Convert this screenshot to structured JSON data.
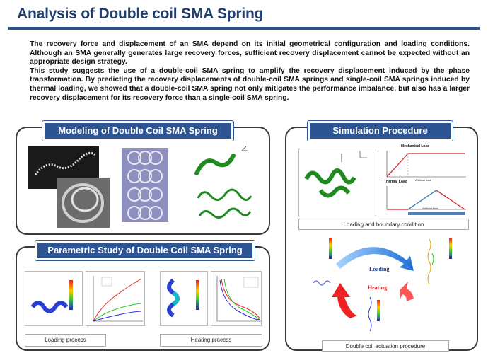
{
  "title": "Analysis of Double coil SMA Spring",
  "intro": {
    "p1": "The recovery force and displacement of an SMA depend on its initial geometrical configuration and loading conditions. Although an SMA generally generates large recovery forces, sufficient recovery displacement cannot be expected without an appropriate design strategy.",
    "p2": "This study suggests the use of a double-coil SMA spring to amplify the recovery displacement induced by the phase transformation. By predicting the recovery displacements of double-coil SMA springs and single-coil SMA springs induced by thermal loading, we showed that a double-coil SMA spring not only mitigates the performance imbalance, but also has a larger recovery displacement for its recovery force than a single-coil SMA spring."
  },
  "panels": {
    "modeling": {
      "title": "Modeling of Double Coil SMA Spring"
    },
    "parametric": {
      "title": "Parametric Study of Double Coil SMA Spring",
      "caption_loading": "Loading process",
      "caption_heating": "Heating process"
    },
    "simulation": {
      "title": "Simulation Procedure",
      "mechanical_load": "Mechanical Load",
      "thermal_load": "Thermal Load",
      "artificial_time": "Artificial time",
      "caption_boundary": "Loading  and boundary condition",
      "loading_label": "Loading",
      "heating_label": "Heating",
      "caption_actuation": "Double coil actuation procedure"
    }
  },
  "colors": {
    "title": "#1f3f6e",
    "header_bg": "#2d5593",
    "spring_green": "#1f8a1f",
    "spring_blue": "#2a3fd6"
  }
}
